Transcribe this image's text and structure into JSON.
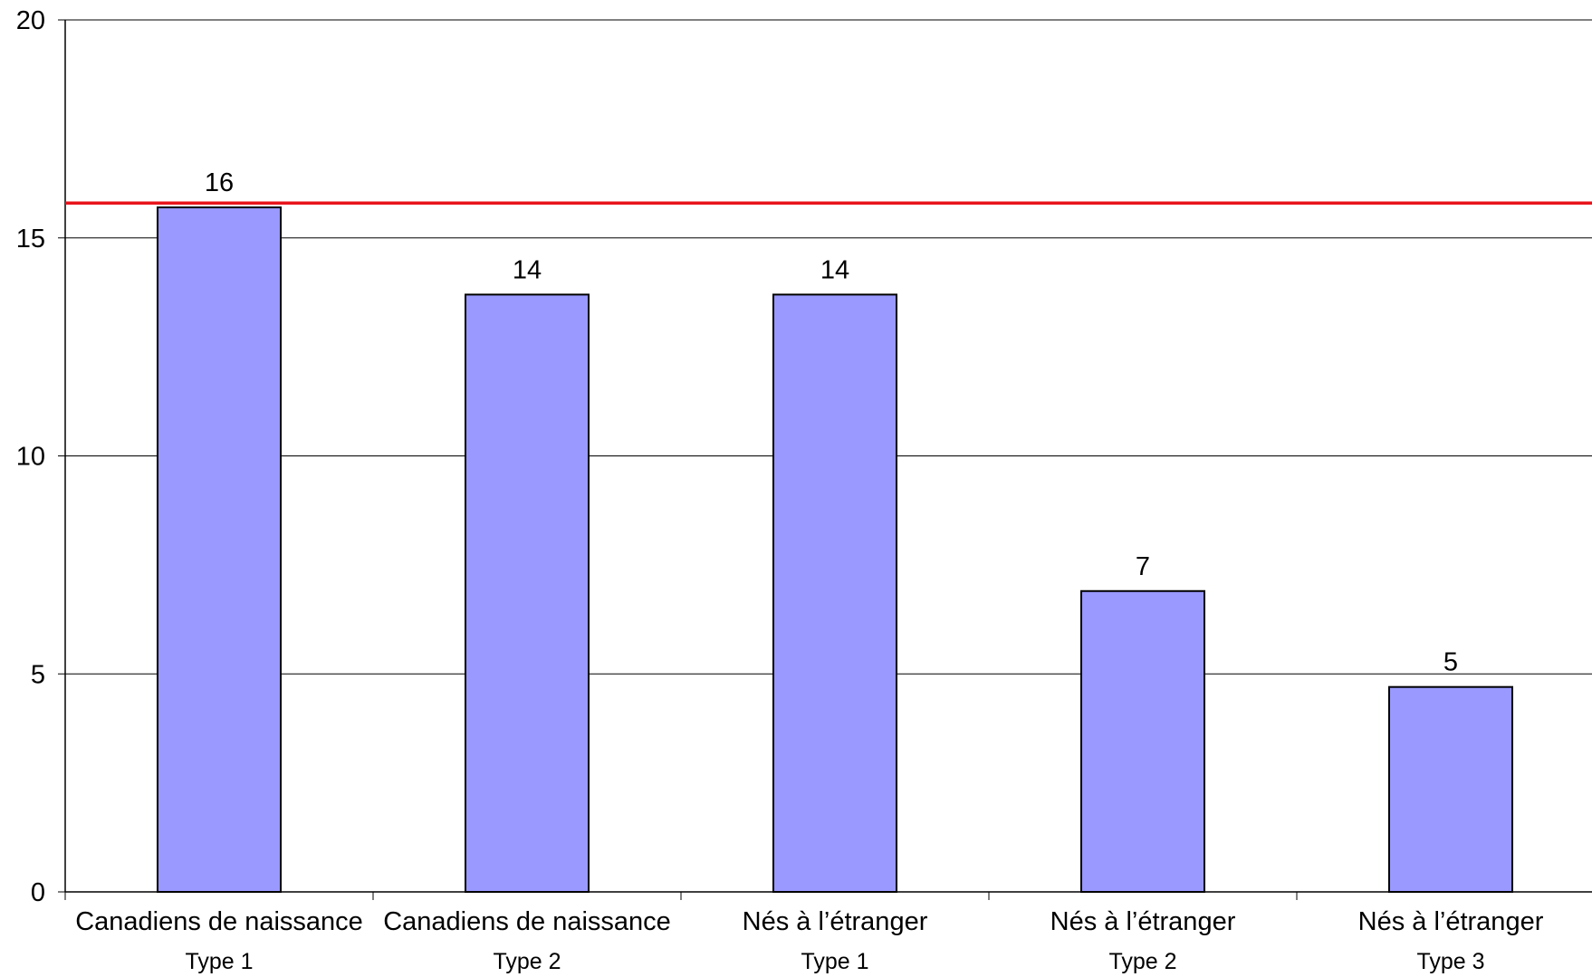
{
  "chart_data": {
    "type": "bar",
    "title": "",
    "xlabel": "",
    "ylabel": "",
    "ylim": [
      0,
      20
    ],
    "yticks": [
      0,
      5,
      10,
      15,
      20
    ],
    "grid": true,
    "legend": "none",
    "categories": [
      {
        "label": "Canadiens de naissance",
        "sublabel": "Type 1"
      },
      {
        "label": "Canadiens de naissance",
        "sublabel": "Type 2"
      },
      {
        "label": "Nés à l’étranger",
        "sublabel": "Type 1"
      },
      {
        "label": "Nés à l’étranger",
        "sublabel": "Type 2"
      },
      {
        "label": "Nés à l’étranger",
        "sublabel": "Type 3"
      }
    ],
    "values": [
      15.7,
      13.7,
      13.7,
      6.9,
      4.7
    ],
    "data_labels": [
      "16",
      "14",
      "14",
      "7",
      "5"
    ],
    "reference_line": {
      "value": 15.8,
      "color": "#e8141b"
    },
    "colors": {
      "bar_fill": "#9999ff",
      "bar_stroke": "#000000",
      "grid": "#000000",
      "axis": "#000000"
    }
  }
}
